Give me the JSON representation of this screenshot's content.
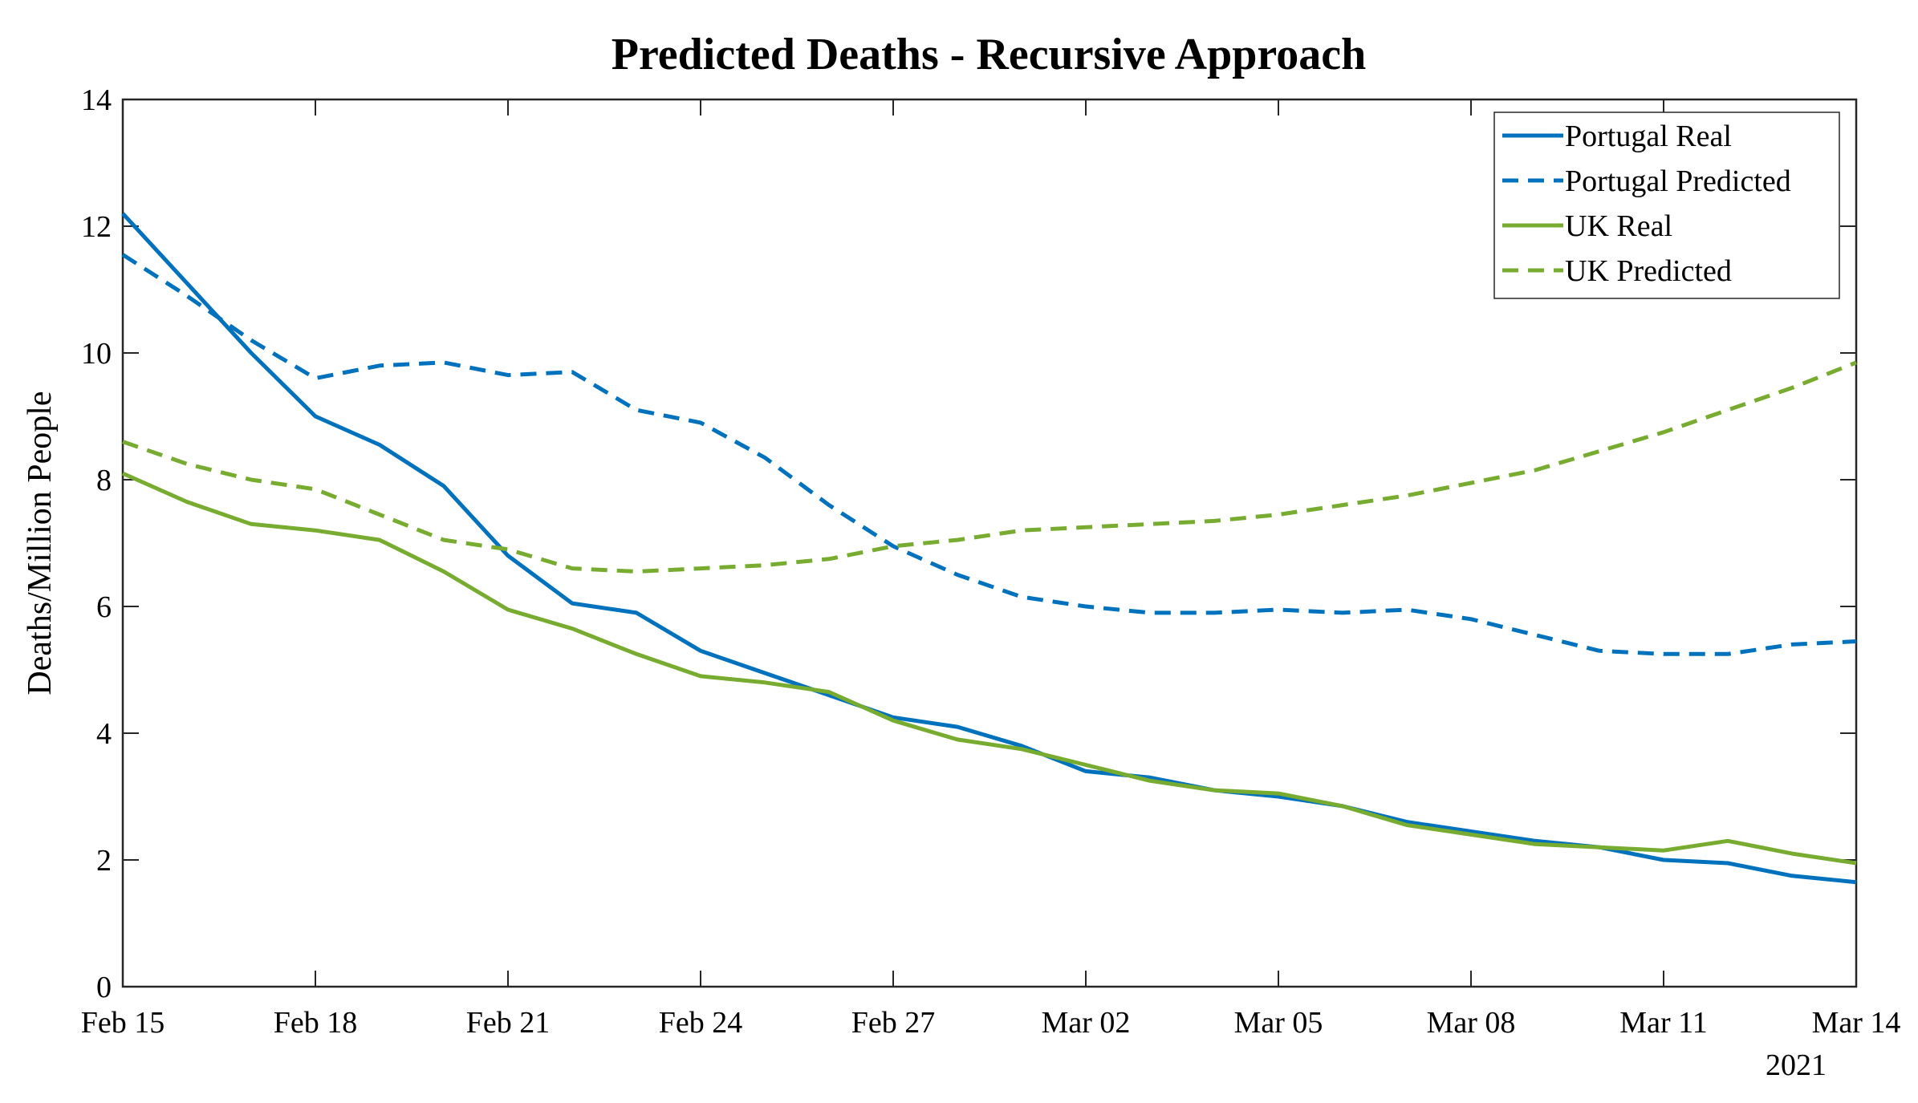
{
  "chart_data": {
    "type": "line",
    "title": "Predicted Deaths - Recursive Approach",
    "xlabel": "",
    "ylabel": "Deaths/Million People",
    "year_label": "2021",
    "x_start": "2021-02-15",
    "x_end": "2021-03-14",
    "x_tick_labels": [
      "Feb 15",
      "Feb 18",
      "Feb 21",
      "Feb 24",
      "Feb 27",
      "Mar 02",
      "Mar 05",
      "Mar 08",
      "Mar 11",
      "Mar 14"
    ],
    "x_tick_dates": [
      "2021-02-15",
      "2021-02-18",
      "2021-02-21",
      "2021-02-24",
      "2021-02-27",
      "2021-03-02",
      "2021-03-05",
      "2021-03-08",
      "2021-03-11",
      "2021-03-14"
    ],
    "ylim": [
      0,
      14
    ],
    "y_ticks": [
      0,
      2,
      4,
      6,
      8,
      10,
      12,
      14
    ],
    "grid": false,
    "legend_position": "top-right",
    "x": [
      "2021-02-15",
      "2021-02-16",
      "2021-02-17",
      "2021-02-18",
      "2021-02-19",
      "2021-02-20",
      "2021-02-21",
      "2021-02-22",
      "2021-02-23",
      "2021-02-24",
      "2021-02-25",
      "2021-02-26",
      "2021-02-27",
      "2021-02-28",
      "2021-03-01",
      "2021-03-02",
      "2021-03-03",
      "2021-03-04",
      "2021-03-05",
      "2021-03-06",
      "2021-03-07",
      "2021-03-08",
      "2021-03-09",
      "2021-03-10",
      "2021-03-11",
      "2021-03-12",
      "2021-03-13",
      "2021-03-14"
    ],
    "series": [
      {
        "name": "Portugal Real",
        "color": "#0072BD",
        "dash": "solid",
        "values": [
          12.2,
          11.1,
          10.0,
          9.0,
          8.55,
          7.9,
          6.8,
          6.05,
          5.9,
          5.3,
          4.95,
          4.6,
          4.25,
          4.1,
          3.8,
          3.4,
          3.3,
          3.1,
          3.0,
          2.85,
          2.6,
          2.45,
          2.3,
          2.2,
          2.0,
          1.95,
          1.75,
          1.65
        ]
      },
      {
        "name": "Portugal Predicted",
        "color": "#0072BD",
        "dash": "dashed",
        "values": [
          11.55,
          10.9,
          10.2,
          9.6,
          9.8,
          9.85,
          9.65,
          9.7,
          9.1,
          8.9,
          8.35,
          7.6,
          6.95,
          6.5,
          6.15,
          6.0,
          5.9,
          5.9,
          5.95,
          5.9,
          5.95,
          5.8,
          5.55,
          5.3,
          5.25,
          5.25,
          5.4,
          5.45
        ]
      },
      {
        "name": "UK Real",
        "color": "#77AC30",
        "dash": "solid",
        "values": [
          8.1,
          7.65,
          7.3,
          7.2,
          7.05,
          6.55,
          5.95,
          5.65,
          5.25,
          4.9,
          4.8,
          4.65,
          4.2,
          3.9,
          3.75,
          3.5,
          3.25,
          3.1,
          3.05,
          2.85,
          2.55,
          2.4,
          2.25,
          2.2,
          2.15,
          2.3,
          2.1,
          1.95
        ]
      },
      {
        "name": "UK Predicted",
        "color": "#77AC30",
        "dash": "dashed",
        "values": [
          8.6,
          8.25,
          8.0,
          7.85,
          7.45,
          7.05,
          6.9,
          6.6,
          6.55,
          6.6,
          6.65,
          6.75,
          6.95,
          7.05,
          7.2,
          7.25,
          7.3,
          7.35,
          7.45,
          7.6,
          7.75,
          7.95,
          8.15,
          8.45,
          8.75,
          9.1,
          9.45,
          9.85
        ]
      }
    ]
  }
}
